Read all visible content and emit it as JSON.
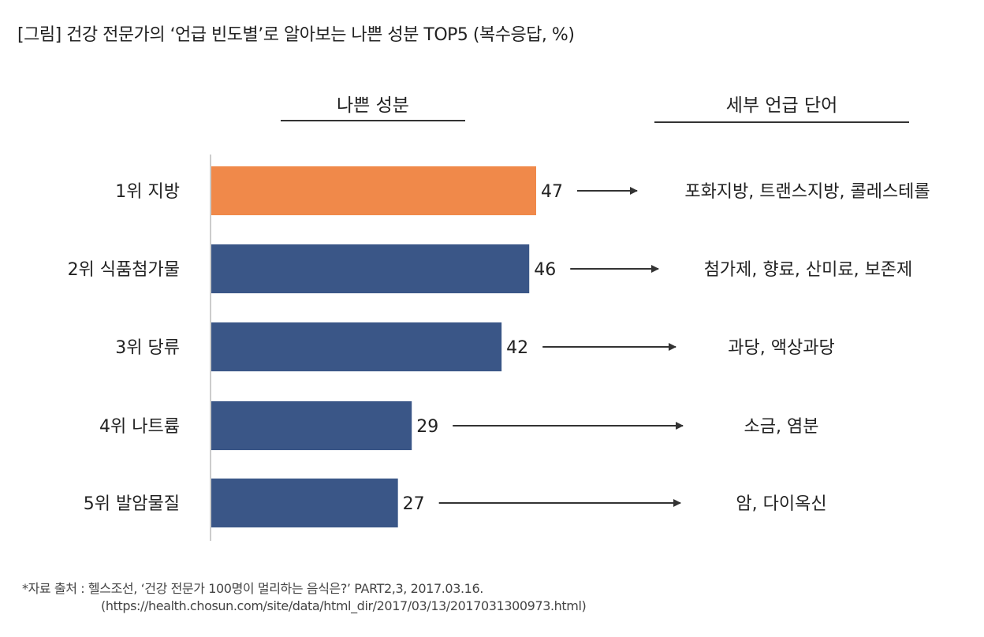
{
  "title": "[그림] 건강 전문가의 ‘언급 빈도별’로 알아보는 나쁜 성분 TOP5 (복수응답, %)",
  "headers": {
    "left": "나쁜 성분",
    "right": "세부 언급 단어"
  },
  "chart_data": {
    "type": "bar",
    "orientation": "horizontal",
    "title": "[그림] 건강 전문가의 ‘언급 빈도별’로 알아보는 나쁜 성분 TOP5 (복수응답, %)",
    "categories": [
      "1위 지방",
      "2위 식품첨가물",
      "3위 당류",
      "4위 나트륨",
      "5위 발암물질"
    ],
    "values": [
      47,
      46,
      42,
      29,
      27
    ],
    "data_labels": [
      "47",
      "46",
      "42",
      "29",
      "27"
    ],
    "details": [
      "포화지방, 트랜스지방, 콜레스테롤",
      "첨가제, 향료, 산미료, 보존제",
      "과당, 액상과당",
      "소금, 염분",
      "암, 다이옥신"
    ],
    "colors": [
      "#F0894A",
      "#3A5687",
      "#3A5687",
      "#3A5687",
      "#3A5687"
    ],
    "xlim": [
      0,
      47
    ],
    "grid": false,
    "xlabel": "",
    "ylabel": ""
  },
  "footnote": {
    "line1": "*자료 출처 : 헬스조선, ‘건강 전문가 100명이 멀리하는 음식은?’ PART2,3, 2017.03.16.",
    "line2": "(https://health.chosun.com/site/data/html_dir/2017/03/13/2017031300973.html)"
  }
}
